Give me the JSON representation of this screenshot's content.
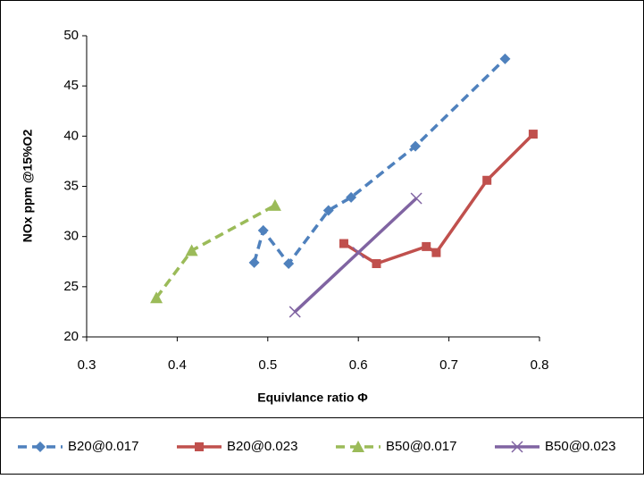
{
  "chart_data": {
    "type": "line",
    "x_label": "Equivlance ratio Φ",
    "y_label": "NOx ppm @15%O2",
    "xlim": [
      0.3,
      0.8
    ],
    "xticks": [
      0.3,
      0.4,
      0.5,
      0.6,
      0.7,
      0.8
    ],
    "ylim": [
      20,
      50
    ],
    "yticks": [
      20,
      25,
      30,
      35,
      40,
      45,
      50
    ],
    "legend": "bottom",
    "series": [
      {
        "name": "B20@0.017",
        "color": "#4f81bd",
        "dashed": true,
        "marker": "diamond",
        "x": [
          0.485,
          0.495,
          0.523,
          0.567,
          0.592,
          0.663,
          0.762
        ],
        "values": [
          27.4,
          30.6,
          27.3,
          32.6,
          33.9,
          39.0,
          47.7
        ]
      },
      {
        "name": "B20@0.023",
        "color": "#c0504d",
        "dashed": false,
        "marker": "square",
        "x": [
          0.584,
          0.62,
          0.675,
          0.686,
          0.742,
          0.793
        ],
        "values": [
          29.3,
          27.3,
          29.0,
          28.4,
          35.6,
          40.2
        ]
      },
      {
        "name": "B50@0.017",
        "color": "#9bbb59",
        "dashed": true,
        "marker": "triangle",
        "x": [
          0.377,
          0.416,
          0.508
        ],
        "values": [
          23.9,
          28.6,
          33.1
        ]
      },
      {
        "name": "B50@0.023",
        "color": "#8064a2",
        "dashed": false,
        "marker": "x",
        "x": [
          0.53,
          0.6,
          0.664
        ],
        "values": [
          22.5,
          28.4,
          33.8
        ]
      }
    ]
  }
}
